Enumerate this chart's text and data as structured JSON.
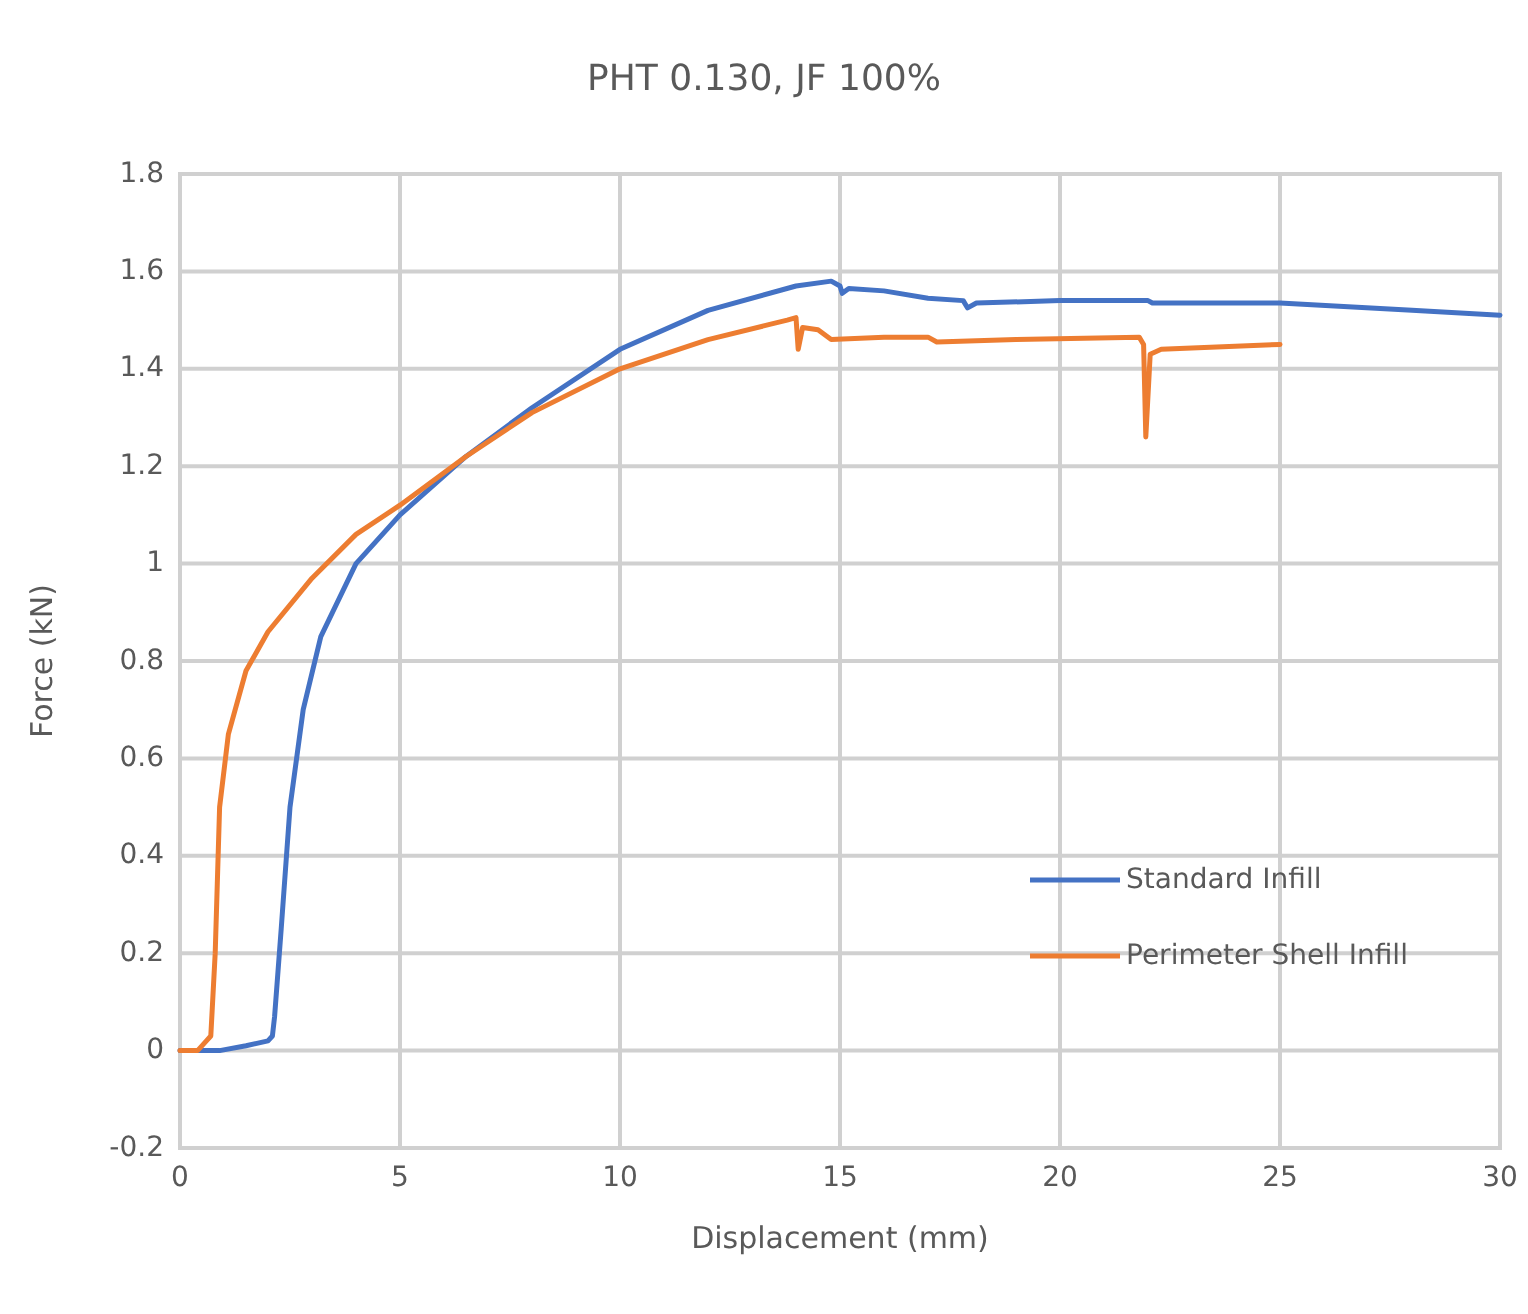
{
  "chart_data": {
    "type": "line",
    "title": "PHT 0.130, JF 100%",
    "xlabel": "Displacement (mm)",
    "ylabel": "Force (kN)",
    "xlim": [
      0,
      30
    ],
    "xticks": [
      0,
      5,
      10,
      15,
      20,
      25,
      30
    ],
    "ylim": [
      -0.2,
      1.8
    ],
    "yticks": [
      -0.2,
      0,
      0.2,
      0.4,
      0.6,
      0.8,
      1,
      1.2,
      1.4,
      1.6,
      1.8
    ],
    "grid": true,
    "legend": "right",
    "series": [
      {
        "name": "Standard Infill",
        "color": "#4472c4",
        "x": [
          0,
          0.9,
          1.5,
          2.0,
          2.1,
          2.15,
          2.3,
          2.5,
          2.8,
          3.2,
          4,
          5,
          6.5,
          8,
          10,
          12,
          14,
          14.8,
          15,
          15.05,
          15.2,
          16,
          17,
          17.8,
          17.9,
          18.1,
          20,
          22,
          22.1,
          25,
          28,
          30
        ],
        "values": [
          0,
          0,
          0.01,
          0.02,
          0.03,
          0.07,
          0.25,
          0.5,
          0.7,
          0.85,
          1.0,
          1.1,
          1.22,
          1.32,
          1.44,
          1.52,
          1.57,
          1.58,
          1.57,
          1.555,
          1.565,
          1.56,
          1.545,
          1.54,
          1.525,
          1.535,
          1.54,
          1.54,
          1.535,
          1.535,
          1.52,
          1.51
        ]
      },
      {
        "name": "Perimeter Shell Infill",
        "color": "#ed7d31",
        "x": [
          0,
          0.4,
          0.6,
          0.7,
          0.8,
          0.9,
          1.1,
          1.5,
          2,
          3,
          4,
          5,
          6.5,
          8,
          10,
          12,
          13.8,
          14,
          14.05,
          14.15,
          14.5,
          14.8,
          16,
          17,
          17.2,
          19,
          21.8,
          21.9,
          21.95,
          22.05,
          22.3,
          25
        ],
        "values": [
          0,
          0,
          0.02,
          0.03,
          0.2,
          0.5,
          0.65,
          0.78,
          0.86,
          0.97,
          1.06,
          1.12,
          1.22,
          1.31,
          1.4,
          1.46,
          1.5,
          1.505,
          1.44,
          1.485,
          1.48,
          1.46,
          1.465,
          1.465,
          1.455,
          1.46,
          1.465,
          1.45,
          1.26,
          1.43,
          1.44,
          1.45
        ]
      }
    ]
  }
}
